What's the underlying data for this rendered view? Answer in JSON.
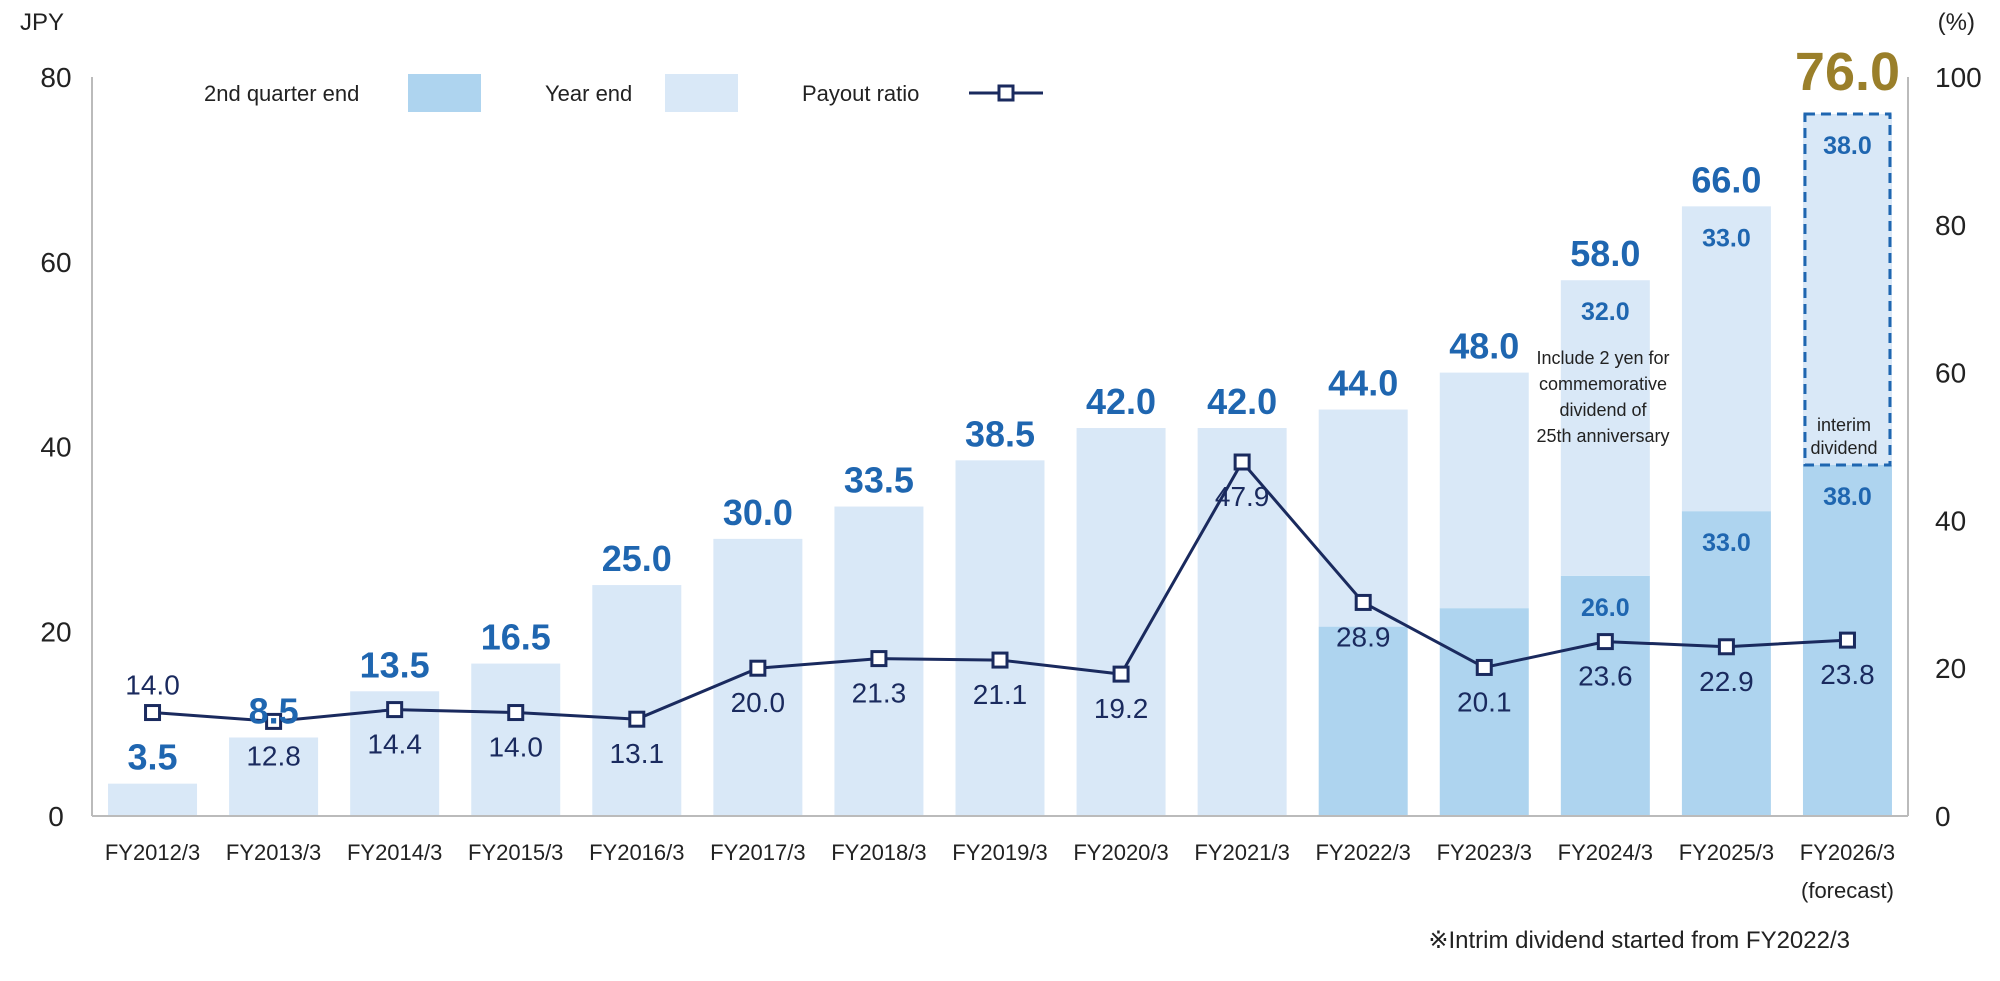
{
  "chart_data": {
    "type": "bar",
    "stacked": true,
    "categories": [
      "FY2012/3",
      "FY2013/3",
      "FY2014/3",
      "FY2015/3",
      "FY2016/3",
      "FY2017/3",
      "FY2018/3",
      "FY2019/3",
      "FY2020/3",
      "FY2021/3",
      "FY2022/3",
      "FY2023/3",
      "FY2024/3",
      "FY2025/3",
      "FY2026/3"
    ],
    "category_sublabels": {
      "FY2026/3": "(forecast)"
    },
    "left_axis": {
      "label": "JPY",
      "range": [
        0,
        80
      ],
      "ticks": [
        "0",
        "20",
        "40",
        "60",
        "80"
      ]
    },
    "right_axis": {
      "label": "(%)",
      "range": [
        0,
        100
      ],
      "ticks": [
        "0",
        "20",
        "40",
        "60",
        "80",
        "100"
      ]
    },
    "grid": false,
    "legend_position": "top",
    "series": [
      {
        "name": "2nd quarter end",
        "type": "bar",
        "color": "#aed4ef",
        "values": [
          0,
          0,
          0,
          0,
          0,
          0,
          0,
          0,
          0,
          0,
          20.5,
          22.5,
          26.0,
          33.0,
          38.0
        ],
        "labels": [
          "",
          "",
          "",
          "",
          "",
          "",
          "",
          "",
          "",
          "",
          "",
          "",
          "26.0",
          "33.0",
          "38.0"
        ]
      },
      {
        "name": "Year end",
        "type": "bar",
        "color": "#d9e8f7",
        "values": [
          3.5,
          8.5,
          13.5,
          16.5,
          25.0,
          30.0,
          33.5,
          38.5,
          42.0,
          42.0,
          23.5,
          25.5,
          32.0,
          33.0,
          38.0
        ],
        "labels": [
          "",
          "",
          "",
          "",
          "",
          "",
          "",
          "",
          "",
          "",
          "",
          "",
          "32.0",
          "33.0",
          "38.0"
        ]
      },
      {
        "name": "Payout ratio",
        "type": "line",
        "axis": "right",
        "color": "#1a2a5e",
        "values": [
          14.0,
          12.8,
          14.4,
          14.0,
          13.1,
          20.0,
          21.3,
          21.1,
          19.2,
          47.9,
          28.9,
          20.1,
          23.6,
          22.9,
          23.8
        ],
        "labels": [
          "14.0",
          "12.8",
          "14.4",
          "14.0",
          "13.1",
          "20.0",
          "21.3",
          "21.1",
          "19.2",
          "47.9",
          "28.9",
          "20.1",
          "23.6",
          "22.9",
          "23.8"
        ]
      }
    ],
    "totals": [
      "3.5",
      "8.5",
      "13.5",
      "16.5",
      "25.0",
      "30.0",
      "33.5",
      "38.5",
      "42.0",
      "42.0",
      "44.0",
      "48.0",
      "58.0",
      "66.0",
      "76.0"
    ],
    "colors": {
      "total_label": "#1f66b0",
      "forecast_total": "#9a7f2a",
      "forecast_outline": "#1f66b0"
    },
    "annotations": {
      "fy2024_note": [
        "Include 2 yen for",
        "commemorative",
        "dividend of",
        "25th anniversary"
      ],
      "fy2026_note": [
        "interim",
        "dividend"
      ]
    },
    "footnote": "※Intrim dividend started from FY2022/3"
  }
}
